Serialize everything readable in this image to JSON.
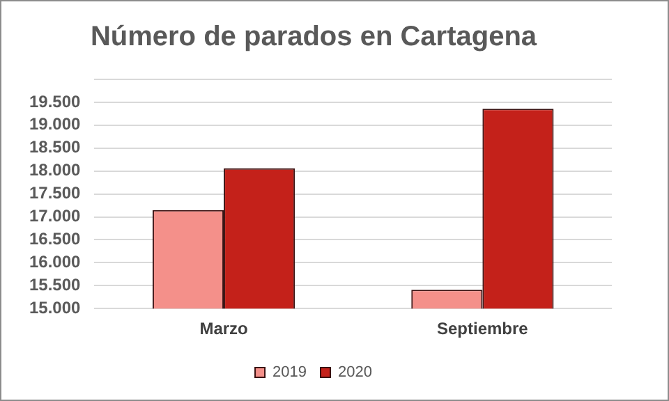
{
  "chart_data": {
    "type": "bar",
    "title": "Número de parados en Cartagena",
    "categories": [
      "Marzo",
      "Septiembre"
    ],
    "series": [
      {
        "name": "2019",
        "color": "#f4908a",
        "values": [
          17150,
          15410
        ]
      },
      {
        "name": "2020",
        "color": "#c4211a",
        "values": [
          18060,
          19360
        ]
      }
    ],
    "ylim": [
      15000,
      20000
    ],
    "yticks": [
      {
        "value": 15000,
        "label": "15.000"
      },
      {
        "value": 15500,
        "label": "15.500"
      },
      {
        "value": 16000,
        "label": "16.000"
      },
      {
        "value": 16500,
        "label": "16.500"
      },
      {
        "value": 17000,
        "label": "17.000"
      },
      {
        "value": 17500,
        "label": "17.500"
      },
      {
        "value": 18000,
        "label": "18.000"
      },
      {
        "value": 18500,
        "label": "18.500"
      },
      {
        "value": 19000,
        "label": "19.000"
      },
      {
        "value": 19500,
        "label": "19.500"
      },
      {
        "value": 20000,
        "label": null
      }
    ],
    "grid": "y",
    "legend": "bottom"
  }
}
